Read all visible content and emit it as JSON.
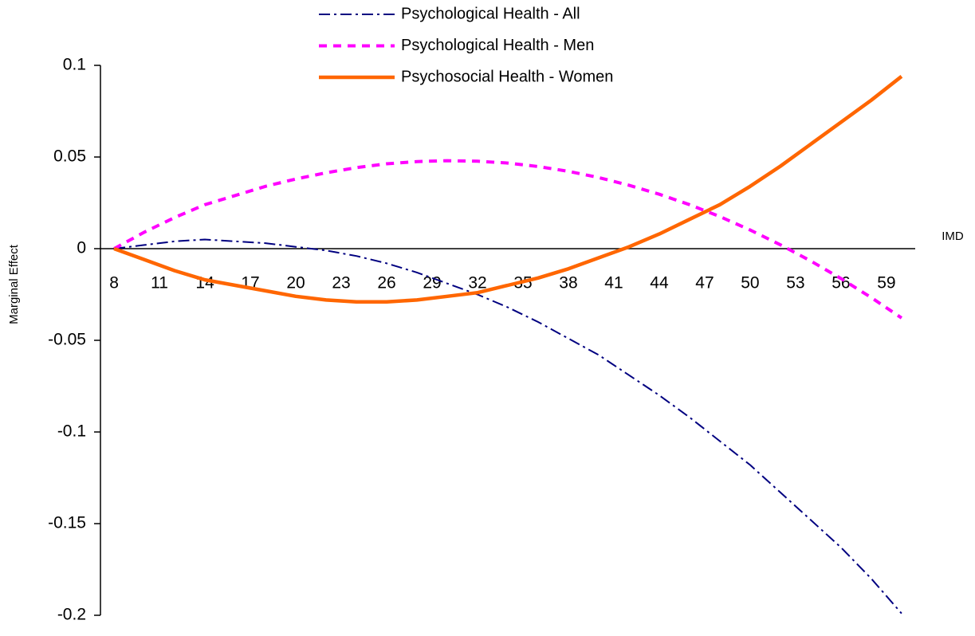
{
  "chart_data": {
    "type": "line",
    "x_label": "IMD",
    "y_label": "Marginal Effect",
    "x": [
      8,
      10,
      12,
      14,
      16,
      18,
      20,
      22,
      24,
      26,
      28,
      30,
      32,
      34,
      36,
      38,
      40,
      42,
      44,
      46,
      48,
      50,
      52,
      54,
      56,
      58,
      60
    ],
    "xlim": [
      7.1,
      60.9
    ],
    "xticks": [
      8,
      11,
      14,
      17,
      20,
      23,
      26,
      29,
      32,
      35,
      38,
      41,
      44,
      47,
      50,
      53,
      56,
      59
    ],
    "ylim": [
      -0.2,
      0.1
    ],
    "yticks": [
      0.1,
      0.05,
      0,
      -0.05,
      -0.1,
      -0.15,
      -0.2
    ],
    "series": [
      {
        "name": "Psychological Health - All",
        "color": "#000080",
        "style": "dashdot",
        "values": [
          0,
          0.002,
          0.004,
          0.005,
          0.004,
          0.003,
          0.001,
          -0.001,
          -0.004,
          -0.008,
          -0.013,
          -0.019,
          -0.025,
          -0.032,
          -0.04,
          -0.049,
          -0.058,
          -0.069,
          -0.08,
          -0.092,
          -0.105,
          -0.118,
          -0.133,
          -0.148,
          -0.163,
          -0.18,
          -0.199
        ]
      },
      {
        "name": "Psychological Health - Men",
        "color": "#ff00ff",
        "style": "dashed",
        "values": [
          0,
          0.009,
          0.017,
          0.024,
          0.029,
          0.034,
          0.038,
          0.0414,
          0.0442,
          0.0463,
          0.0475,
          0.048,
          0.0477,
          0.0467,
          0.0448,
          0.0422,
          0.0388,
          0.0346,
          0.0297,
          0.024,
          0.0175,
          0.0102,
          0.0021,
          -0.0067,
          -0.0163,
          -0.0267,
          -0.0378
        ]
      },
      {
        "name": "Psychosocial Health - Women",
        "color": "#ff6600",
        "style": "solid",
        "values": [
          0,
          -0.006,
          -0.012,
          -0.017,
          -0.02,
          -0.023,
          -0.026,
          -0.028,
          -0.029,
          -0.029,
          -0.028,
          -0.026,
          -0.024,
          -0.02,
          -0.016,
          -0.011,
          -0.005,
          0.001,
          0.008,
          0.016,
          0.024,
          0.034,
          0.045,
          0.057,
          0.069,
          0.081,
          0.094
        ]
      }
    ]
  }
}
